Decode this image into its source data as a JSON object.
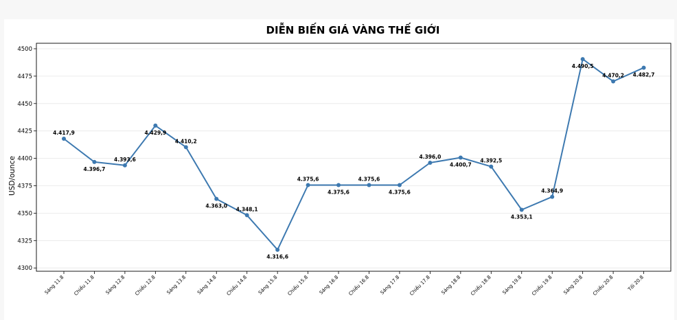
{
  "chart_data": {
    "type": "line",
    "title": "DIỄN BIẾN GIÁ VÀNG THẾ GIỚI",
    "xlabel": "",
    "ylabel": "USD/ounce",
    "ylim": [
      4297,
      4505
    ],
    "yticks": [
      4300,
      4325,
      4350,
      4375,
      4400,
      4425,
      4450,
      4475,
      4500
    ],
    "grid": "horizontal",
    "line_color": "#3d79b0",
    "categories": [
      "Sáng 11.8",
      "Chiều 11.8",
      "Sáng 12.8",
      "Chiều 12.8",
      "Sáng 13.8",
      "Sáng 14.8",
      "Chiều 14.8",
      "Sáng 15.8",
      "Chiều 15.8",
      "Sáng 16.8",
      "Chiều 16.8",
      "Sáng 17.8",
      "Chiều 17.8",
      "Sáng 18.8",
      "Chiều 18.8",
      "Sáng 19.8",
      "Chiều 19.8",
      "Sáng 20.8",
      "Chiều 20.8",
      "Tối 20.8"
    ],
    "values": [
      4417.9,
      4396.7,
      4393.6,
      4429.9,
      4410.2,
      4363.0,
      4348.1,
      4316.6,
      4375.6,
      4375.6,
      4375.6,
      4375.6,
      4396.0,
      4400.7,
      4392.5,
      4353.1,
      4364.9,
      4490.5,
      4470.2,
      4482.7
    ],
    "data_labels": [
      "4.417,9",
      "4.396,7",
      "4.393,6",
      "4.429,9",
      "4.410,2",
      "4.363,0",
      "4.348,1",
      "4.316,6",
      "4.375,6",
      "4.375,6",
      "4.375,6",
      "4.375,6",
      "4.396,0",
      "4.400,7",
      "4.392,5",
      "4.353,1",
      "4.364,9",
      "4.490,5",
      "4.470,2",
      "4.482,7"
    ],
    "label_positions": [
      "above",
      "below",
      "above",
      "below",
      "above",
      "below",
      "above",
      "below",
      "above",
      "below",
      "above",
      "below",
      "above",
      "below",
      "above",
      "below",
      "above",
      "below",
      "above",
      "below"
    ]
  }
}
